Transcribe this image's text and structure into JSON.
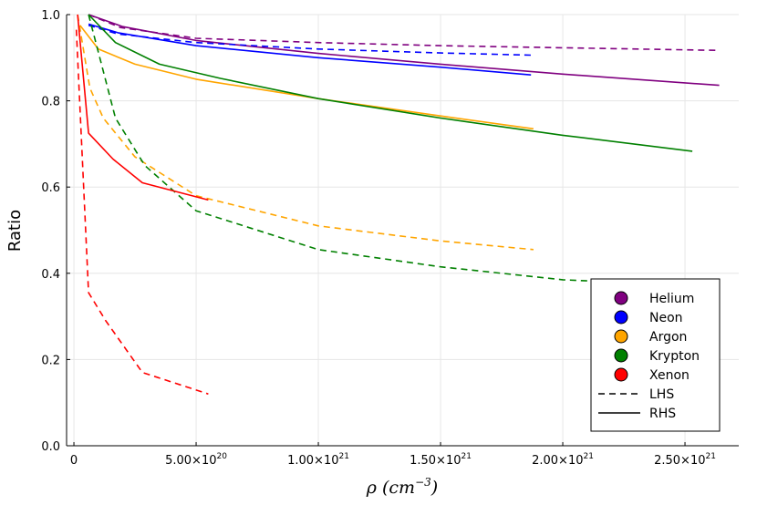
{
  "chart_data": {
    "type": "line",
    "title": "",
    "xlabel": {
      "symbol": "ρ",
      "unit_base": "cm",
      "unit_exp": "−3"
    },
    "ylabel": "Ratio",
    "xlim": [
      -3e+19,
      2.72e+21
    ],
    "ylim": [
      0,
      1
    ],
    "grid": true,
    "legend_position": "bottom-right",
    "x_ticks": [
      {
        "value": 0,
        "label": "0",
        "exp": ""
      },
      {
        "value": 5e+20,
        "label": "5.00×10",
        "exp": "20"
      },
      {
        "value": 1e+21,
        "label": "1.00×10",
        "exp": "21"
      },
      {
        "value": 1.5e+21,
        "label": "1.50×10",
        "exp": "21"
      },
      {
        "value": 2e+21,
        "label": "2.00×10",
        "exp": "21"
      },
      {
        "value": 2.5e+21,
        "label": "2.50×10",
        "exp": "21"
      }
    ],
    "y_ticks": [
      {
        "value": 0,
        "label": "0.0"
      },
      {
        "value": 0.2,
        "label": "0.2"
      },
      {
        "value": 0.4,
        "label": "0.4"
      },
      {
        "value": 0.6,
        "label": "0.6"
      },
      {
        "value": 0.8,
        "label": "0.8"
      },
      {
        "value": 1.0,
        "label": "1.0"
      }
    ],
    "series": [
      {
        "name": "Helium",
        "style": "LHS",
        "color": "#800080",
        "x": [
          6e+19,
          1.9e+20,
          5e+20,
          1e+21,
          1.5e+21,
          2e+21,
          2.64e+21
        ],
        "y": [
          1.0,
          0.97,
          0.945,
          0.935,
          0.928,
          0.923,
          0.917
        ]
      },
      {
        "name": "Helium",
        "style": "RHS",
        "color": "#800080",
        "x": [
          6e+19,
          2e+20,
          5e+20,
          1e+21,
          1.5e+21,
          2e+21,
          2.64e+21
        ],
        "y": [
          1.0,
          0.972,
          0.94,
          0.91,
          0.885,
          0.862,
          0.836
        ]
      },
      {
        "name": "Neon",
        "style": "LHS",
        "color": "#0000ff",
        "x": [
          6e+19,
          1.8e+20,
          5e+20,
          1e+21,
          1.5e+21,
          1.87e+21
        ],
        "y": [
          0.975,
          0.955,
          0.935,
          0.92,
          0.911,
          0.906
        ]
      },
      {
        "name": "Neon",
        "style": "RHS",
        "color": "#0000ff",
        "x": [
          6e+19,
          1.8e+20,
          5e+20,
          1e+21,
          1.5e+21,
          1.87e+21
        ],
        "y": [
          0.978,
          0.958,
          0.928,
          0.9,
          0.878,
          0.86
        ]
      },
      {
        "name": "Argon",
        "style": "LHS",
        "color": "#ffa500",
        "x": [
          1.5e+19,
          6.5e+19,
          1.2e+20,
          2.5e+20,
          5e+20,
          1e+21,
          1.5e+21,
          1.88e+21
        ],
        "y": [
          1.0,
          0.83,
          0.76,
          0.67,
          0.58,
          0.51,
          0.475,
          0.455
        ]
      },
      {
        "name": "Argon",
        "style": "RHS",
        "color": "#ffa500",
        "x": [
          2.5e+19,
          1e+20,
          2.5e+20,
          5e+20,
          1e+21,
          1.5e+21,
          1.88e+21
        ],
        "y": [
          0.975,
          0.92,
          0.885,
          0.85,
          0.805,
          0.765,
          0.735
        ]
      },
      {
        "name": "Krypton",
        "style": "LHS",
        "color": "#008000",
        "x": [
          6e+19,
          1.7e+20,
          2.9e+20,
          5e+20,
          1e+21,
          1.5e+21,
          2e+21,
          2.2e+21
        ],
        "y": [
          1.0,
          0.76,
          0.65,
          0.545,
          0.455,
          0.415,
          0.385,
          0.38
        ]
      },
      {
        "name": "Krypton",
        "style": "RHS",
        "color": "#008000",
        "x": [
          6e+19,
          1.7e+20,
          3.5e+20,
          6e+20,
          1e+21,
          1.5e+21,
          2e+21,
          2.53e+21
        ],
        "y": [
          1.0,
          0.935,
          0.885,
          0.852,
          0.805,
          0.76,
          0.72,
          0.683
        ]
      },
      {
        "name": "Xenon",
        "style": "LHS",
        "color": "#ff0000",
        "x": [
          1e+19,
          6e+19,
          1.3e+20,
          2.8e+20,
          5.5e+20
        ],
        "y": [
          0.965,
          0.355,
          0.29,
          0.17,
          0.12
        ]
      },
      {
        "name": "Xenon",
        "style": "RHS",
        "color": "#ff0000",
        "x": [
          1.5e+19,
          6e+19,
          1.6e+20,
          2.8e+20,
          5.5e+20
        ],
        "y": [
          1.0,
          0.725,
          0.665,
          0.61,
          0.57
        ]
      }
    ],
    "legend": {
      "markers": [
        {
          "label": "Helium",
          "color": "#800080"
        },
        {
          "label": "Neon",
          "color": "#0000ff"
        },
        {
          "label": "Argon",
          "color": "#ffa500"
        },
        {
          "label": "Krypton",
          "color": "#008000"
        },
        {
          "label": "Xenon",
          "color": "#ff0000"
        }
      ],
      "lines": [
        {
          "label": "LHS",
          "dash": true
        },
        {
          "label": "RHS",
          "dash": false
        }
      ]
    }
  }
}
